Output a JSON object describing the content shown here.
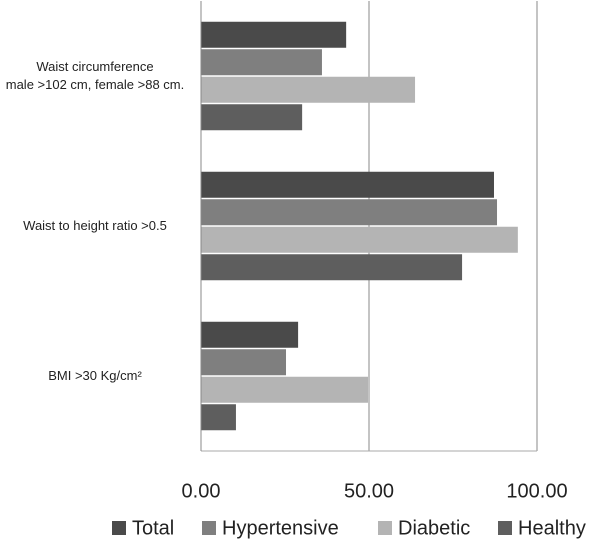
{
  "chart_data": {
    "type": "hbar",
    "categories": [
      "Waist circumference\nmale >102 cm, female >88 cm.",
      "Waist to height ratio >0.5",
      "BMI >30 Kg/cm²"
    ],
    "series": [
      {
        "name": "Total",
        "color": "#4a4a4a",
        "values": [
          43.2,
          87.2,
          28.9
        ]
      },
      {
        "name": "Hypertensive",
        "color": "#7f7f7f",
        "values": [
          36.0,
          88.1,
          25.3
        ]
      },
      {
        "name": "Diabetic",
        "color": "#b4b4b4",
        "values": [
          63.7,
          94.3,
          49.7
        ]
      },
      {
        "name": "Healthy",
        "color": "#5e5e5e",
        "values": [
          30.1,
          77.7,
          10.4
        ]
      }
    ],
    "xlim": [
      0,
      100
    ],
    "xticks": [
      {
        "value": 0,
        "label": "0.00"
      },
      {
        "value": 50,
        "label": "50.00"
      },
      {
        "value": 100,
        "label": "100.00"
      }
    ],
    "grid": true
  }
}
